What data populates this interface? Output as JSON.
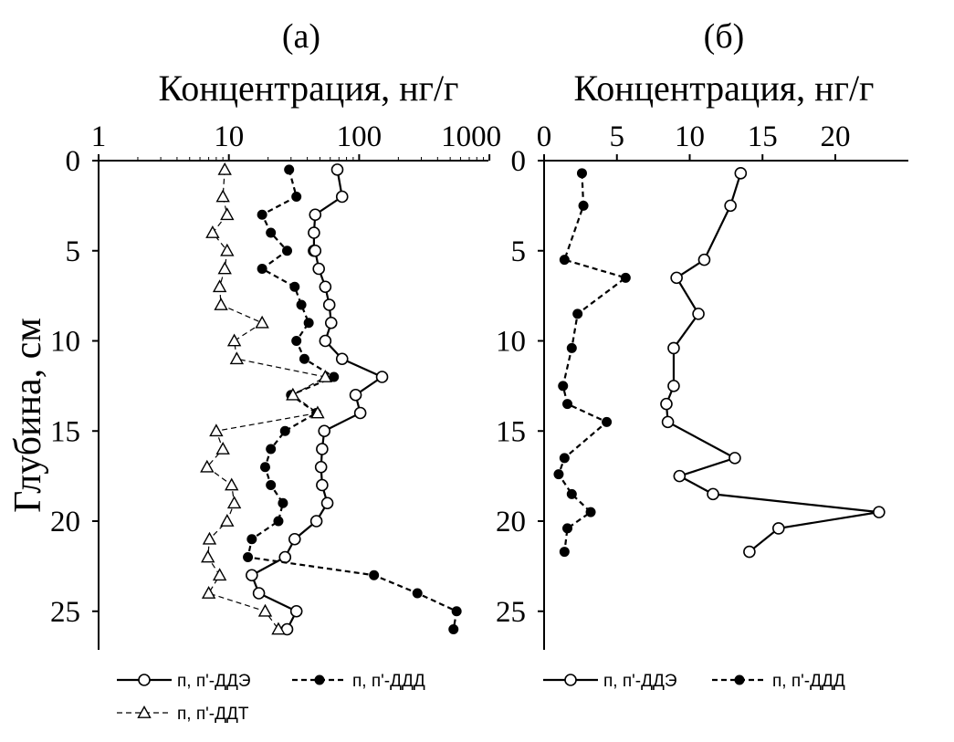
{
  "shared": {
    "ylabel": "Глубина, см",
    "y_ticks": [
      "0",
      "5",
      "10",
      "15",
      "20",
      "25"
    ],
    "ylim": [
      0,
      27
    ]
  },
  "chart_data": [
    {
      "type": "line",
      "title": "(а)",
      "xlabel": "Концентрация, нг/г",
      "x_scale": "log",
      "xlim": [
        1,
        1000
      ],
      "x_ticks": [
        "1",
        "10",
        "100",
        "1000"
      ],
      "x_axis_position": "top",
      "legend_position": "bottom",
      "series": [
        {
          "name": "п, п'-ДДЭ",
          "line": "solid",
          "marker": "open-circle",
          "points": [
            [
              68,
              0.5
            ],
            [
              74,
              2
            ],
            [
              46,
              3
            ],
            [
              45,
              4
            ],
            [
              45,
              5
            ],
            [
              46,
              5
            ],
            [
              49,
              6
            ],
            [
              55,
              7
            ],
            [
              59,
              8
            ],
            [
              61,
              9
            ],
            [
              55,
              10
            ],
            [
              74,
              11
            ],
            [
              150,
              12
            ],
            [
              94,
              13
            ],
            [
              102,
              14
            ],
            [
              54,
              15
            ],
            [
              52,
              16
            ],
            [
              51,
              17
            ],
            [
              52,
              18
            ],
            [
              57,
              19
            ],
            [
              47,
              20
            ],
            [
              32,
              21
            ],
            [
              27,
              22
            ],
            [
              15,
              23
            ],
            [
              17,
              24
            ],
            [
              33,
              25
            ],
            [
              28,
              26
            ]
          ]
        },
        {
          "name": "п, п'-ДДД",
          "line": "dashed",
          "marker": "filled-circle",
          "points": [
            [
              29,
              0.5
            ],
            [
              33,
              2
            ],
            [
              18,
              3
            ],
            [
              21,
              4
            ],
            [
              28,
              5
            ],
            [
              18,
              6
            ],
            [
              32,
              7
            ],
            [
              36,
              8
            ],
            [
              41,
              9
            ],
            [
              33,
              10
            ],
            [
              38,
              11
            ],
            [
              64,
              12
            ],
            [
              30,
              13
            ],
            [
              47,
              14
            ],
            [
              27,
              15
            ],
            [
              21,
              16
            ],
            [
              19,
              17
            ],
            [
              21,
              18
            ],
            [
              26,
              19
            ],
            [
              24,
              20
            ],
            [
              15,
              21
            ],
            [
              14,
              22
            ],
            [
              130,
              23
            ],
            [
              280,
              24
            ],
            [
              560,
              25
            ],
            [
              530,
              26
            ]
          ]
        },
        {
          "name": "п, п'-ДДТ",
          "line": "thin-dashed",
          "marker": "open-triangle",
          "points": [
            [
              9.3,
              0.5
            ],
            [
              9.0,
              2
            ],
            [
              9.7,
              3
            ],
            [
              7.5,
              4
            ],
            [
              9.7,
              5
            ],
            [
              9.3,
              6
            ],
            [
              8.5,
              7
            ],
            [
              8.7,
              8
            ],
            [
              18,
              9
            ],
            [
              11,
              10
            ],
            [
              11.5,
              11
            ],
            [
              55,
              12
            ],
            [
              31,
              13
            ],
            [
              48,
              14
            ],
            [
              8.0,
              15
            ],
            [
              9.0,
              16
            ],
            [
              6.8,
              17
            ],
            [
              10.5,
              18
            ],
            [
              11,
              19
            ],
            [
              9.7,
              20
            ],
            [
              7.1,
              21
            ],
            [
              6.9,
              22
            ],
            [
              8.5,
              23
            ],
            [
              7.0,
              24
            ],
            [
              19,
              25
            ],
            [
              24,
              26
            ]
          ]
        }
      ]
    },
    {
      "type": "line",
      "title": "(б)",
      "xlabel": "Концентрация, нг/г",
      "x_scale": "linear",
      "xlim": [
        0,
        25
      ],
      "x_ticks": [
        "0",
        "5",
        "10",
        "15",
        "20"
      ],
      "x_axis_position": "top",
      "legend_position": "bottom",
      "series": [
        {
          "name": "п, п'-ДДЭ",
          "line": "solid",
          "marker": "open-circle",
          "points": [
            [
              13.5,
              0.7
            ],
            [
              12.8,
              2.5
            ],
            [
              11.0,
              5.5
            ],
            [
              9.1,
              6.5
            ],
            [
              10.6,
              8.5
            ],
            [
              8.9,
              10.4
            ],
            [
              8.9,
              12.5
            ],
            [
              8.4,
              13.5
            ],
            [
              8.5,
              14.5
            ],
            [
              13.1,
              16.5
            ],
            [
              9.3,
              17.5
            ],
            [
              11.6,
              18.5
            ],
            [
              23.0,
              19.5
            ],
            [
              16.1,
              20.4
            ],
            [
              14.1,
              21.7
            ]
          ]
        },
        {
          "name": "п, п'-ДДД",
          "line": "dashed",
          "marker": "filled-circle",
          "points": [
            [
              2.6,
              0.7
            ],
            [
              2.7,
              2.5
            ],
            [
              1.4,
              5.5
            ],
            [
              5.6,
              6.5
            ],
            [
              2.3,
              8.5
            ],
            [
              1.9,
              10.4
            ],
            [
              1.3,
              12.5
            ],
            [
              1.6,
              13.5
            ],
            [
              4.3,
              14.5
            ],
            [
              1.4,
              16.5
            ],
            [
              1.0,
              17.4
            ],
            [
              1.9,
              18.5
            ],
            [
              3.2,
              19.5
            ],
            [
              1.6,
              20.4
            ],
            [
              1.4,
              21.7
            ]
          ]
        }
      ]
    }
  ]
}
